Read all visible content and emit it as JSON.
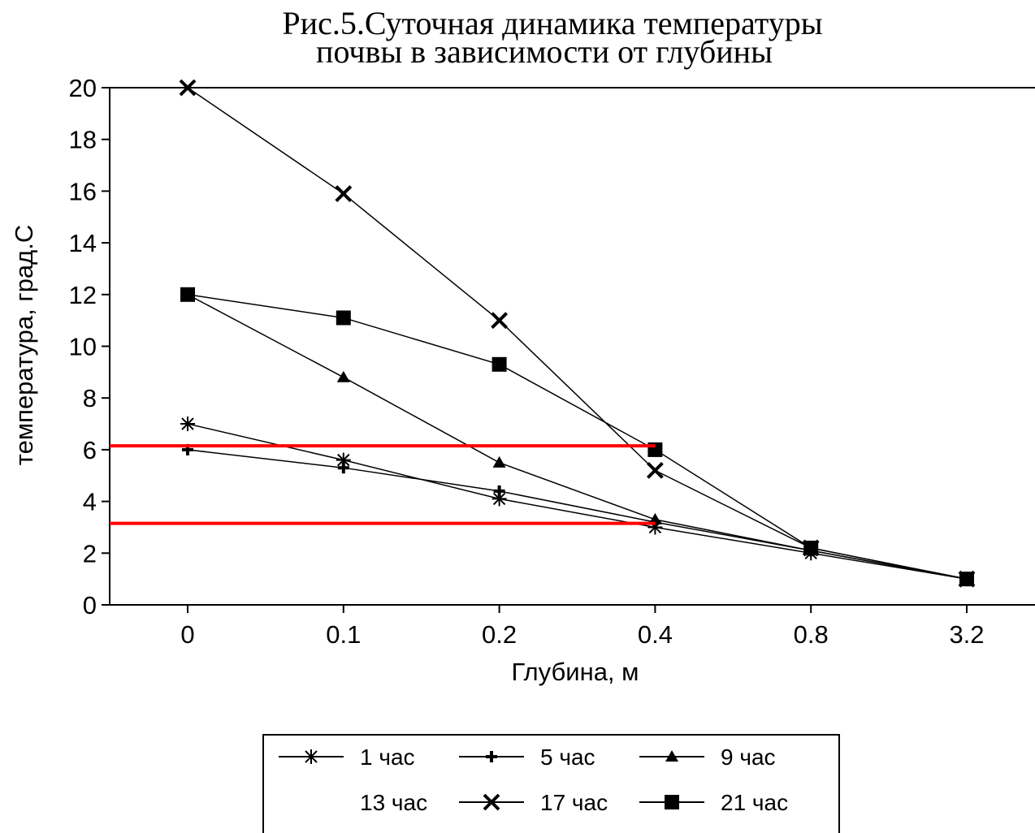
{
  "chart_data": {
    "type": "line",
    "title_lines": [
      "Рис.5.Суточная динамика температуры",
      "почвы в зависимости от глубины"
    ],
    "xlabel": "Глубина, м",
    "ylabel": "температура, град.С",
    "categories": [
      "0",
      "0.1",
      "0.2",
      "0.4",
      "0.8",
      "3.2"
    ],
    "ylim": [
      0,
      20
    ],
    "y_ticks": [
      "0",
      "2",
      "4",
      "6",
      "8",
      "10",
      "12",
      "14",
      "16",
      "18",
      "20"
    ],
    "grid": false,
    "legend_position": "bottom",
    "series": [
      {
        "name": "1 час",
        "marker": "asterisk",
        "values": [
          7.0,
          5.6,
          4.1,
          3.0,
          2.0,
          1.0
        ]
      },
      {
        "name": "5 час",
        "marker": "plus",
        "values": [
          6.0,
          5.3,
          4.4,
          3.2,
          2.1,
          1.0
        ]
      },
      {
        "name": "9 час",
        "marker": "triangle",
        "values": [
          12.0,
          8.8,
          5.5,
          3.3,
          2.1,
          1.0
        ]
      },
      {
        "name": "13 час",
        "marker": "none",
        "values": [
          null,
          null,
          null,
          null,
          null,
          null
        ]
      },
      {
        "name": "17 час",
        "marker": "x",
        "values": [
          20.0,
          15.9,
          11.0,
          5.2,
          2.2,
          1.0
        ]
      },
      {
        "name": "21 час",
        "marker": "square",
        "values": [
          12.0,
          11.1,
          9.3,
          6.0,
          2.2,
          1.0
        ]
      }
    ],
    "highlight_lines": [
      {
        "y": 6.15,
        "x_from": "0",
        "x_to": "0.4",
        "color": "#ff0000"
      },
      {
        "y": 3.15,
        "x_from": "0",
        "x_to": "0.4",
        "color": "#ff0000"
      }
    ]
  }
}
